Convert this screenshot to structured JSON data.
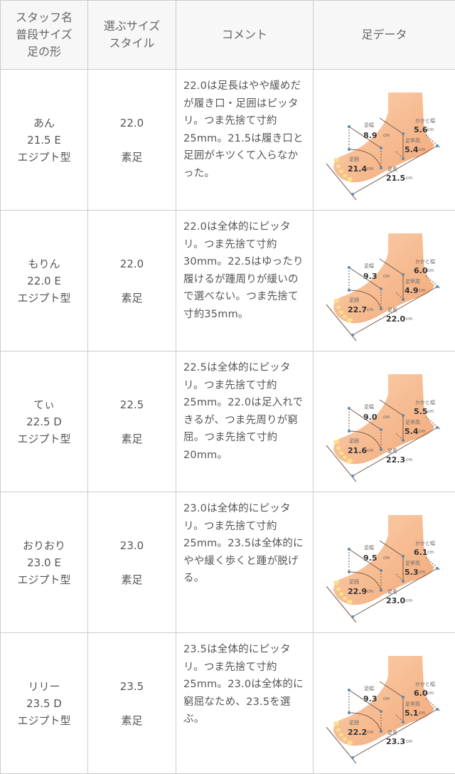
{
  "header": {
    "col1": [
      "スタッフ名",
      "普段サイズ",
      "足の形"
    ],
    "col2": [
      "選ぶサイズ",
      "スタイル"
    ],
    "col3": "コメント",
    "col4": "足データ"
  },
  "foot_labels": {
    "width": "足幅",
    "heel": "かかと幅",
    "instep": "足甲高",
    "girth": "足囲",
    "length": "足長",
    "unit": "cm"
  },
  "colors": {
    "skin": "#f7bb8f",
    "border": "#cccccc",
    "header_bg": "#f7f7f7"
  },
  "rows": [
    {
      "name": "あん",
      "usual": "21.5 E",
      "shape": "エジプト型",
      "size": "22.0",
      "style": "素足",
      "comment": "22.0は足長はやや緩めだが履き口・足囲はピッタリ。つま先捨て寸約25mm。21.5は履き口と足囲がキツくて入らなかった。",
      "foot": {
        "width": "8.9",
        "heel": "5.6",
        "instep": "5.4",
        "girth": "21.4",
        "length": "21.5"
      }
    },
    {
      "name": "もりん",
      "usual": "22.0 E",
      "shape": "エジプト型",
      "size": "22.0",
      "style": "素足",
      "comment": "22.0は全体的にピッタリ。つま先捨て寸約30mm。22.5はゆったり履けるが踵周りが緩いので選べない。つま先捨て寸約35mm。",
      "foot": {
        "width": "9.3",
        "heel": "6.0",
        "instep": "4.9",
        "girth": "22.7",
        "length": "22.0"
      }
    },
    {
      "name": "てぃ",
      "usual": "22.5 D",
      "shape": "エジプト型",
      "size": "22.5",
      "style": "素足",
      "comment": "22.5は全体的にピッタリ。つま先捨て寸約25mm。22.0は足入れできるが、つま先周りが窮屈。つま先捨て寸約20mm。",
      "foot": {
        "width": "9.0",
        "heel": "5.5",
        "instep": "5.4",
        "girth": "21.6",
        "length": "22.3"
      }
    },
    {
      "name": "おりおり",
      "usual": "23.0 E",
      "shape": "エジプト型",
      "size": "23.0",
      "style": "素足",
      "comment": "23.0は全体的にピッタリ。つま先捨て寸約25mm。23.5は全体的にやや緩く歩くと踵が脱げる。",
      "foot": {
        "width": "9.5",
        "heel": "6.1",
        "instep": "5.3",
        "girth": "22.9",
        "length": "23.0"
      }
    },
    {
      "name": "リリー",
      "usual": "23.5 D",
      "shape": "エジプト型",
      "size": "23.5",
      "style": "素足",
      "comment": "23.5は全体的にピッタリ。つま先捨て寸約25mm。23.0は全体的に窮屈なため、23.5を選ぶ。",
      "foot": {
        "width": "9.3",
        "heel": "6.0",
        "instep": "5.1",
        "girth": "22.2",
        "length": "23.3"
      }
    }
  ]
}
